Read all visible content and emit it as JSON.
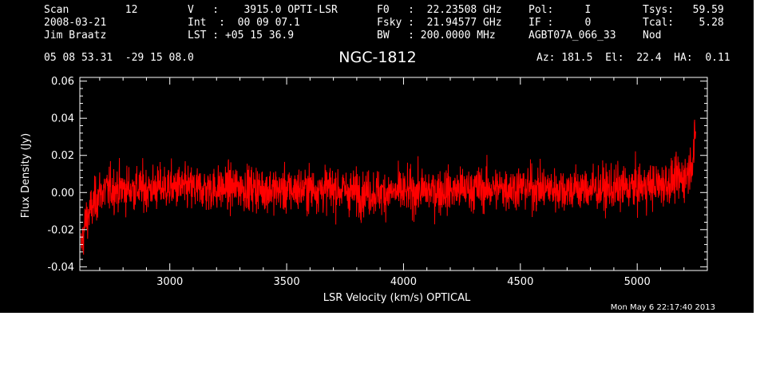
{
  "header": {
    "col1": [
      "Scan         12",
      "2008-03-21",
      "Jim Braatz"
    ],
    "col2": [
      "V   :    3915.0 OPTI-LSR",
      "Int  :  00 09 07.1",
      "LST : +05 15 36.9"
    ],
    "col3": [
      "F0   :  22.23508 GHz",
      "Fsky :  21.94577 GHz",
      "BW   : 200.0000 MHz"
    ],
    "col4": [
      "Pol:     I",
      "IF :     0",
      "AGBT07A_066_33"
    ],
    "col5": [
      "Tsys:   59.59",
      "Tcal:    5.28",
      "Nod"
    ],
    "coords": "05 08 53.31  -29 15 08.0",
    "pointing": "Az: 181.5  El:  22.4  HA:  0.11"
  },
  "chart_data": {
    "type": "line",
    "title": "NGC-1812",
    "xlabel": "LSR Velocity (km/s) OPTICAL",
    "ylabel": "Flux Density (Jy)",
    "xlim": [
      2615,
      5300
    ],
    "ylim": [
      -0.042,
      0.062
    ],
    "xticks": [
      3000,
      3500,
      4000,
      4500,
      5000
    ],
    "xtick_labels": [
      "3000",
      "3500",
      "4000",
      "4500",
      "5000"
    ],
    "yticks": [
      -0.04,
      -0.02,
      0.0,
      0.02,
      0.04,
      0.06
    ],
    "ytick_labels": [
      "-0.04",
      "-0.02",
      "0.00",
      "0.02",
      "0.04",
      "0.06"
    ],
    "grid": false,
    "series_color": "#ff0000",
    "axis_color": "#ffffff",
    "background": "#000000",
    "series": [
      {
        "x": [
          2620,
          2640,
          2660,
          2680,
          2700,
          2750,
          2800,
          2900,
          3000,
          3100,
          3200,
          3300,
          3400,
          3500,
          3600,
          3700,
          3800,
          3900,
          4000,
          4100,
          4200,
          4300,
          4400,
          4500,
          4600,
          4700,
          4800,
          4900,
          5000,
          5100,
          5150,
          5200,
          5220,
          5240,
          5250
        ],
        "y": [
          -0.03,
          -0.015,
          -0.01,
          -0.005,
          0.0,
          0.002,
          0.002,
          0.002,
          0.003,
          0.002,
          0.002,
          0.003,
          0.002,
          0.001,
          0.002,
          0.002,
          0.0,
          0.0,
          0.0,
          0.001,
          0.001,
          0.002,
          0.002,
          0.003,
          0.002,
          0.002,
          0.002,
          0.002,
          0.003,
          0.004,
          0.006,
          0.008,
          0.012,
          0.02,
          0.03
        ],
        "noise_rms": 0.006
      }
    ]
  },
  "timestamp": "Mon May  6 22:17:40 2013"
}
